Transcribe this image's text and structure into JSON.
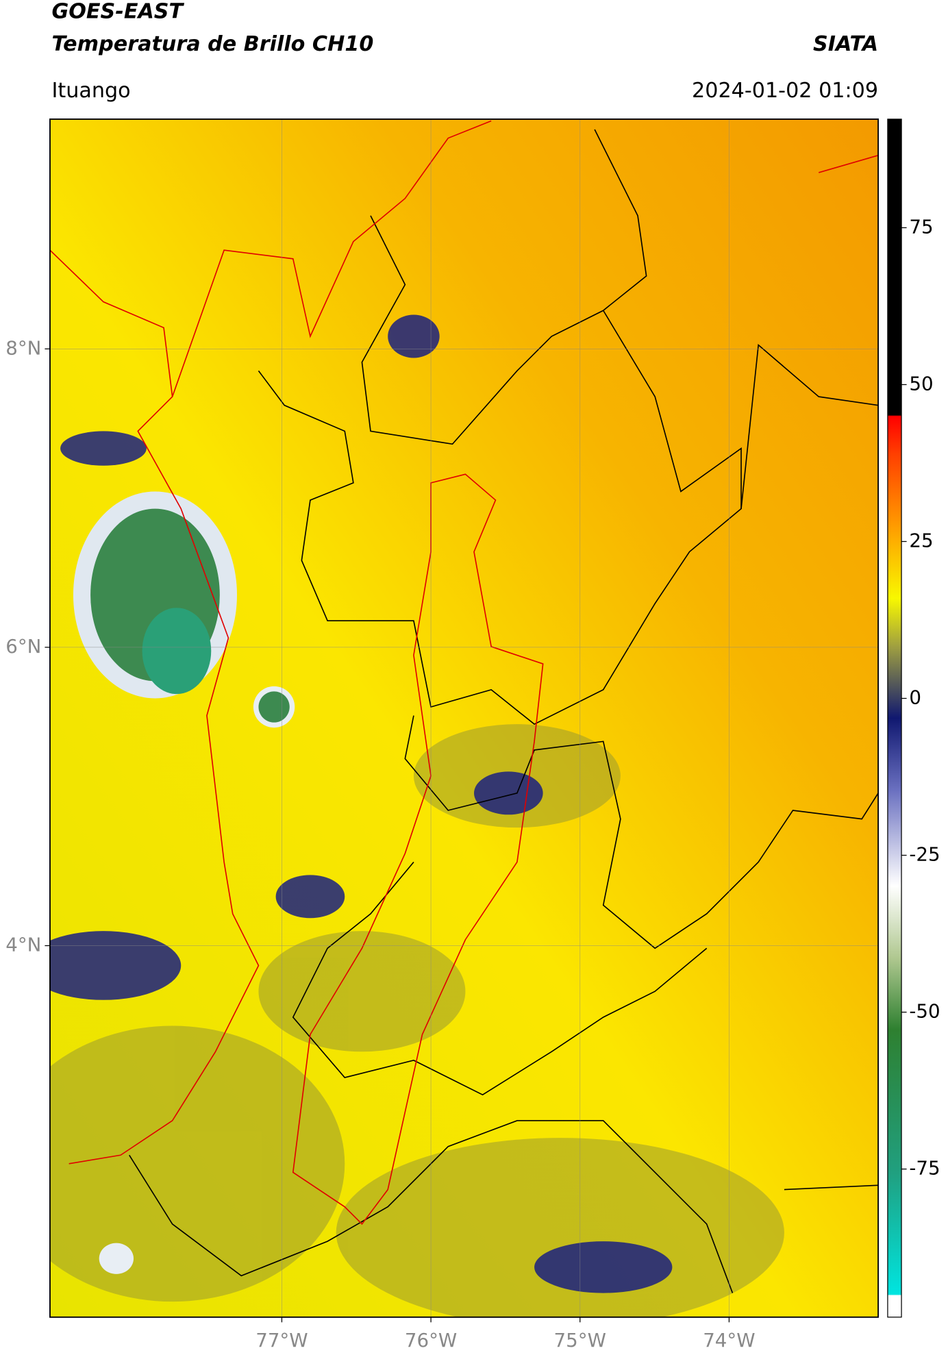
{
  "chart_data": {
    "type": "map",
    "title": "GOES-EAST",
    "subtitle": "Temperatura de Brillo CH10",
    "source": "SIATA",
    "location": "Ituango",
    "datetime": "2024-01-02 01:09",
    "xlim": [
      -78.555,
      -73.0
    ],
    "ylim": [
      1.51,
      9.54
    ],
    "xticks": [
      {
        "value": -77,
        "label": "77°W"
      },
      {
        "value": -76,
        "label": "76°W"
      },
      {
        "value": -75,
        "label": "75°W"
      },
      {
        "value": -74,
        "label": "74°W"
      }
    ],
    "yticks": [
      {
        "value": 8,
        "label": "8°N"
      },
      {
        "value": 6,
        "label": "6°N"
      },
      {
        "value": 4,
        "label": "4°N"
      }
    ],
    "grid": true,
    "colorbar": {
      "lim": [
        -98.6,
        92.3
      ],
      "ticks": [
        -75,
        -50,
        -25,
        0,
        25,
        50,
        75
      ]
    }
  }
}
